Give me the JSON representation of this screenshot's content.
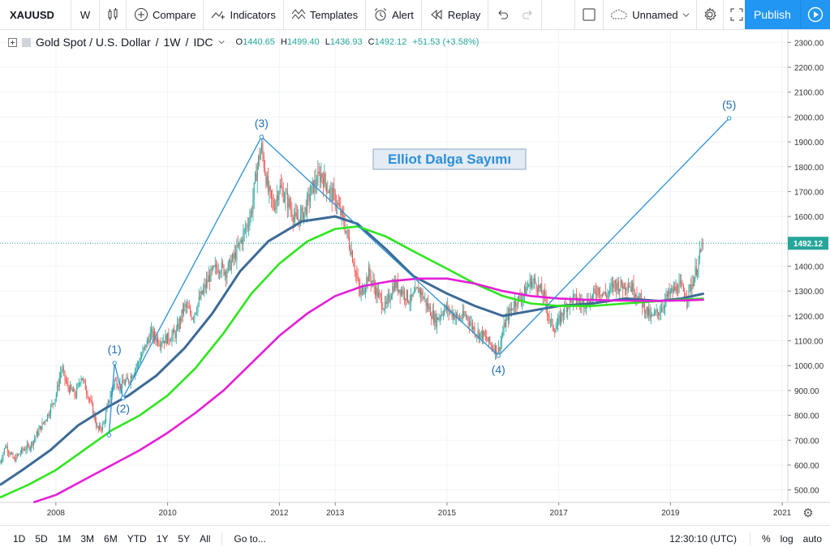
{
  "toolbar": {
    "symbol": "XAUUSD",
    "interval": "W",
    "compare_label": "Compare",
    "indicators_label": "Indicators",
    "templates_label": "Templates",
    "alert_label": "Alert",
    "replay_label": "Replay",
    "layout_name": "Unnamed",
    "publish_label": "Publish"
  },
  "legend": {
    "title": "Gold Spot / U.S. Dollar",
    "interval": "1W",
    "source": "IDC",
    "o_key": "O",
    "o_val": "1440.65",
    "h_key": "H",
    "h_val": "1499.40",
    "l_key": "L",
    "l_val": "1436.93",
    "c_key": "C",
    "c_val": "1492.12",
    "change": "+51.53 (+3.58%)"
  },
  "bottom": {
    "ranges": [
      "1D",
      "5D",
      "1M",
      "3M",
      "6M",
      "YTD",
      "1Y",
      "5Y",
      "All"
    ],
    "goto_label": "Go to...",
    "time": "12:30:10 (UTC)",
    "percent_label": "%",
    "log_label": "log",
    "auto_label": "auto"
  },
  "colors": {
    "accent": "#2196f3",
    "up_candle": "#26a69a",
    "down_candle": "#ef5350",
    "ma_dark": "#3d6a96",
    "ma_green": "#2ee61d",
    "ma_magenta": "#e61dd7",
    "wave_line": "#2b8fd6"
  },
  "chart_data": {
    "type": "candlestick",
    "title": "Gold Spot / U.S. Dollar",
    "annotation_title": "Elliot Dalga Sayımı",
    "ylim": [
      450,
      2350
    ],
    "y_ticks": [
      500,
      600,
      700,
      800,
      900,
      1000,
      1100,
      1200,
      1300,
      1400,
      1500,
      1600,
      1700,
      1800,
      1900,
      2000,
      2100,
      2200,
      2300
    ],
    "y_tick_labels": [
      "500.00",
      "600.00",
      "700.00",
      "800.00",
      "900.00",
      "1000.00",
      "1100.00",
      "1200.00",
      "1300.00",
      "1400.00",
      "1500.00",
      "1600.00",
      "1700.00",
      "1800.00",
      "1900.00",
      "2000.00",
      "2100.00",
      "2200.00",
      "2300.00"
    ],
    "x_range": [
      2007.0,
      2021.1
    ],
    "x_ticks": [
      2008,
      2010,
      2012,
      2013,
      2015,
      2017,
      2019,
      2021
    ],
    "x_tick_labels": [
      "2008",
      "2010",
      "2012",
      "2013",
      "2015",
      "2017",
      "2019",
      "2021"
    ],
    "last_price": 1492.12,
    "last_price_label": "1492.12",
    "price_path": [
      [
        2007.0,
        610
      ],
      [
        2007.1,
        680
      ],
      [
        2007.25,
        620
      ],
      [
        2007.4,
        660
      ],
      [
        2007.55,
        680
      ],
      [
        2007.7,
        740
      ],
      [
        2007.85,
        800
      ],
      [
        2008.0,
        880
      ],
      [
        2008.1,
        990
      ],
      [
        2008.2,
        920
      ],
      [
        2008.35,
        880
      ],
      [
        2008.45,
        960
      ],
      [
        2008.55,
        900
      ],
      [
        2008.65,
        830
      ],
      [
        2008.75,
        740
      ],
      [
        2008.85,
        760
      ],
      [
        2008.95,
        860
      ],
      [
        2009.05,
        940
      ],
      [
        2009.15,
        920
      ],
      [
        2009.3,
        940
      ],
      [
        2009.45,
        1000
      ],
      [
        2009.55,
        1050
      ],
      [
        2009.7,
        1130
      ],
      [
        2009.85,
        1100
      ],
      [
        2010.0,
        1110
      ],
      [
        2010.15,
        1130
      ],
      [
        2010.3,
        1240
      ],
      [
        2010.45,
        1200
      ],
      [
        2010.6,
        1280
      ],
      [
        2010.75,
        1360
      ],
      [
        2010.9,
        1400
      ],
      [
        2011.05,
        1380
      ],
      [
        2011.2,
        1440
      ],
      [
        2011.35,
        1520
      ],
      [
        2011.5,
        1620
      ],
      [
        2011.6,
        1800
      ],
      [
        2011.68,
        1880
      ],
      [
        2011.8,
        1700
      ],
      [
        2011.9,
        1640
      ],
      [
        2012.0,
        1720
      ],
      [
        2012.15,
        1660
      ],
      [
        2012.3,
        1580
      ],
      [
        2012.45,
        1620
      ],
      [
        2012.6,
        1720
      ],
      [
        2012.75,
        1770
      ],
      [
        2012.9,
        1700
      ],
      [
        2013.0,
        1670
      ],
      [
        2013.15,
        1580
      ],
      [
        2013.3,
        1450
      ],
      [
        2013.45,
        1280
      ],
      [
        2013.6,
        1370
      ],
      [
        2013.75,
        1290
      ],
      [
        2013.9,
        1230
      ],
      [
        2014.05,
        1330
      ],
      [
        2014.2,
        1300
      ],
      [
        2014.35,
        1260
      ],
      [
        2014.5,
        1310
      ],
      [
        2014.65,
        1240
      ],
      [
        2014.8,
        1180
      ],
      [
        2014.95,
        1230
      ],
      [
        2015.05,
        1220
      ],
      [
        2015.2,
        1190
      ],
      [
        2015.35,
        1200
      ],
      [
        2015.5,
        1140
      ],
      [
        2015.65,
        1120
      ],
      [
        2015.8,
        1080
      ],
      [
        2015.92,
        1060
      ],
      [
        2016.05,
        1180
      ],
      [
        2016.2,
        1250
      ],
      [
        2016.35,
        1280
      ],
      [
        2016.5,
        1340
      ],
      [
        2016.6,
        1330
      ],
      [
        2016.75,
        1270
      ],
      [
        2016.85,
        1170
      ],
      [
        2016.95,
        1150
      ],
      [
        2017.1,
        1230
      ],
      [
        2017.25,
        1270
      ],
      [
        2017.4,
        1250
      ],
      [
        2017.55,
        1260
      ],
      [
        2017.7,
        1310
      ],
      [
        2017.85,
        1280
      ],
      [
        2018.0,
        1330
      ],
      [
        2018.1,
        1320
      ],
      [
        2018.25,
        1330
      ],
      [
        2018.4,
        1290
      ],
      [
        2018.55,
        1230
      ],
      [
        2018.65,
        1190
      ],
      [
        2018.8,
        1220
      ],
      [
        2018.95,
        1280
      ],
      [
        2019.05,
        1300
      ],
      [
        2019.15,
        1320
      ],
      [
        2019.3,
        1280
      ],
      [
        2019.4,
        1340
      ],
      [
        2019.5,
        1420
      ],
      [
        2019.58,
        1492
      ]
    ],
    "series": [
      {
        "name": "",
        "color": "#3d6a96",
        "points": [
          [
            2007.0,
            520
          ],
          [
            2007.4,
            580
          ],
          [
            2007.9,
            660
          ],
          [
            2008.4,
            760
          ],
          [
            2008.9,
            830
          ],
          [
            2009.3,
            880
          ],
          [
            2009.8,
            960
          ],
          [
            2010.3,
            1070
          ],
          [
            2010.8,
            1210
          ],
          [
            2011.3,
            1380
          ],
          [
            2011.8,
            1500
          ],
          [
            2012.4,
            1580
          ],
          [
            2013.0,
            1600
          ],
          [
            2013.4,
            1570
          ],
          [
            2013.9,
            1470
          ],
          [
            2014.4,
            1360
          ],
          [
            2015.0,
            1290
          ],
          [
            2015.5,
            1240
          ],
          [
            2016.0,
            1200
          ],
          [
            2016.5,
            1220
          ],
          [
            2017.0,
            1240
          ],
          [
            2017.6,
            1250
          ],
          [
            2018.2,
            1270
          ],
          [
            2018.8,
            1260
          ],
          [
            2019.2,
            1270
          ],
          [
            2019.6,
            1290
          ]
        ]
      },
      {
        "name": "",
        "color": "#2ee61d",
        "points": [
          [
            2007.0,
            470
          ],
          [
            2007.5,
            520
          ],
          [
            2008.0,
            580
          ],
          [
            2008.5,
            660
          ],
          [
            2009.0,
            740
          ],
          [
            2009.5,
            800
          ],
          [
            2010.0,
            880
          ],
          [
            2010.5,
            990
          ],
          [
            2011.0,
            1130
          ],
          [
            2011.5,
            1290
          ],
          [
            2012.0,
            1410
          ],
          [
            2012.5,
            1500
          ],
          [
            2013.0,
            1550
          ],
          [
            2013.4,
            1560
          ],
          [
            2013.9,
            1520
          ],
          [
            2014.4,
            1460
          ],
          [
            2015.0,
            1390
          ],
          [
            2015.5,
            1330
          ],
          [
            2016.0,
            1280
          ],
          [
            2016.5,
            1250
          ],
          [
            2017.0,
            1240
          ],
          [
            2017.6,
            1240
          ],
          [
            2018.2,
            1250
          ],
          [
            2018.8,
            1260
          ],
          [
            2019.2,
            1265
          ],
          [
            2019.6,
            1270
          ]
        ]
      },
      {
        "name": "",
        "color": "#e61dd7",
        "points": [
          [
            2007.6,
            450
          ],
          [
            2008.0,
            480
          ],
          [
            2008.5,
            540
          ],
          [
            2009.0,
            600
          ],
          [
            2009.5,
            660
          ],
          [
            2010.0,
            730
          ],
          [
            2010.5,
            810
          ],
          [
            2011.0,
            900
          ],
          [
            2011.5,
            1010
          ],
          [
            2012.0,
            1120
          ],
          [
            2012.5,
            1210
          ],
          [
            2013.0,
            1280
          ],
          [
            2013.5,
            1320
          ],
          [
            2014.0,
            1340
          ],
          [
            2014.5,
            1350
          ],
          [
            2015.0,
            1350
          ],
          [
            2015.5,
            1330
          ],
          [
            2016.0,
            1300
          ],
          [
            2016.5,
            1280
          ],
          [
            2017.0,
            1270
          ],
          [
            2017.5,
            1265
          ],
          [
            2018.0,
            1262
          ],
          [
            2018.6,
            1260
          ],
          [
            2019.2,
            1262
          ],
          [
            2019.6,
            1265
          ]
        ]
      }
    ],
    "wave_points": [
      [
        2008.95,
        720
      ],
      [
        2009.05,
        1010
      ],
      [
        2009.2,
        870
      ],
      [
        2011.68,
        1920
      ],
      [
        2015.92,
        1040
      ],
      [
        2020.05,
        1995
      ]
    ],
    "wave_labels": [
      {
        "text": "(1)",
        "x": 2009.05,
        "y": 1010
      },
      {
        "text": "(2)",
        "x": 2009.2,
        "y": 870
      },
      {
        "text": "(3)",
        "x": 2011.68,
        "y": 1920
      },
      {
        "text": "(4)",
        "x": 2015.92,
        "y": 1040
      },
      {
        "text": "(5)",
        "x": 2020.05,
        "y": 1995
      }
    ]
  }
}
